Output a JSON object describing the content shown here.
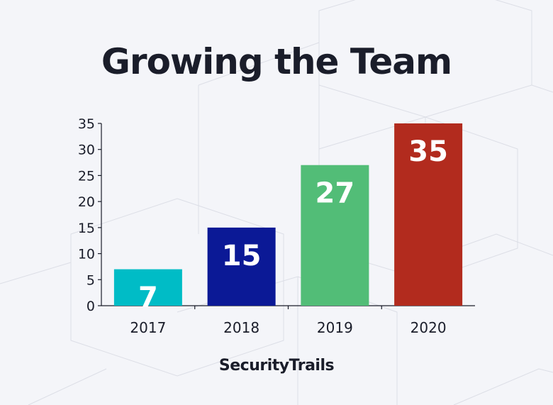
{
  "chart_data": {
    "type": "bar",
    "title": "Growing the Team",
    "categories": [
      "2017",
      "2018",
      "2019",
      "2020"
    ],
    "values": [
      7,
      15,
      27,
      35
    ],
    "data_labels": [
      "7",
      "15",
      "27",
      "35"
    ],
    "colors": [
      "#00bcc6",
      "#0b1996",
      "#52bd77",
      "#b22b1e"
    ],
    "ylim": [
      0,
      35
    ],
    "yticks": [
      "0",
      "5",
      "10",
      "15",
      "20",
      "25",
      "30",
      "35"
    ],
    "grid": false,
    "legend": "none"
  },
  "brand": {
    "name": "SecurityTrails"
  }
}
